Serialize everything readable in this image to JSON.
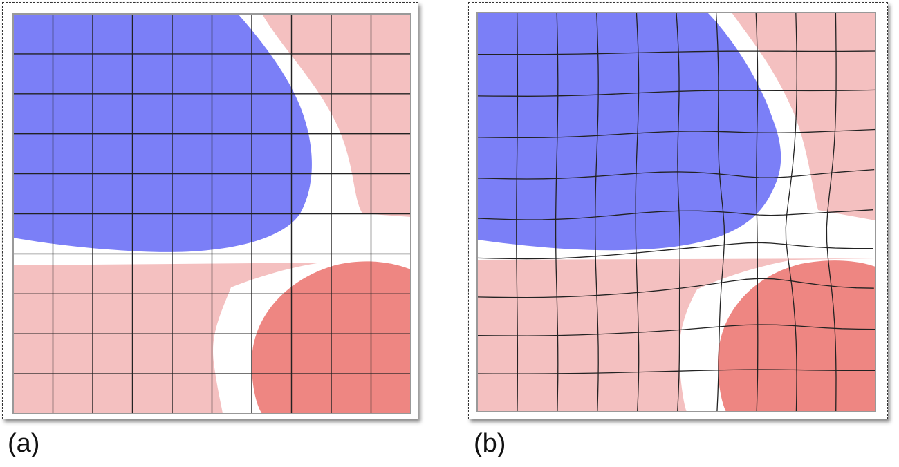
{
  "panels": [
    {
      "id": "a",
      "label": "(a)",
      "grid": "regular"
    },
    {
      "id": "b",
      "label": "(b)",
      "grid": "deformed"
    }
  ],
  "colors": {
    "blue_region": "#7b7ff7",
    "light_red_region": "#f4c0c0",
    "red_region": "#ee8682",
    "gap": "#ffffff",
    "grid_line": "#222222",
    "border": "#999999"
  }
}
